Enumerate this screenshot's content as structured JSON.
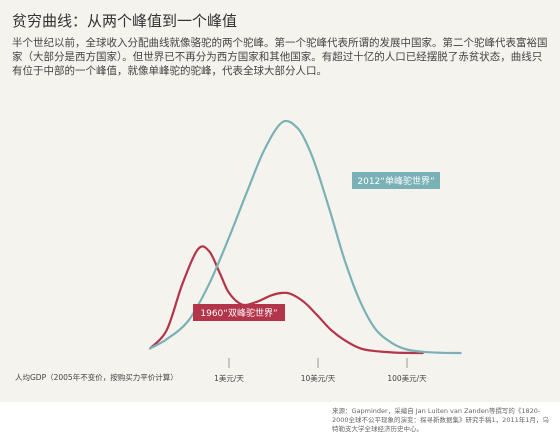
{
  "header": {
    "title": "贫穷曲线：从两个峰值到一个峰值",
    "intro": "半个世纪以前，全球收入分配曲线就像骆驼的两个驼峰。第一个驼峰代表所谓的发展中国家。第二个驼峰代表富裕国家（大部分是西方国家）。但世界已不再分为西方国家和其他国家。有超过十亿的人口已经摆脱了赤贫状态，曲线只有位于中部的一个峰值，就像单峰驼的驼峰，代表全球大部分人口。"
  },
  "colors": {
    "series_2012": "#7ab1b6",
    "series_1960": "#b3354a",
    "background": "#f5f3ee",
    "axis": "#999999"
  },
  "chart_data": {
    "type": "line",
    "x_scale": "log",
    "xlabel": "人均GDP（2005年不变价，按购买力平价计算）",
    "x_ticks": [
      {
        "value": 1,
        "label": "1美元/天"
      },
      {
        "value": 10,
        "label": "10美元/天"
      },
      {
        "value": 100,
        "label": "100美元/天"
      }
    ],
    "series": [
      {
        "name": "2012“单峰驼世界”",
        "color": "#7ab1b6",
        "x": [
          0.13,
          0.2,
          0.35,
          0.6,
          1,
          1.6,
          2.5,
          4,
          6,
          8,
          10,
          14,
          20,
          30,
          45,
          70,
          100,
          150,
          250,
          400
        ],
        "y": [
          0.02,
          0.06,
          0.14,
          0.3,
          0.5,
          0.7,
          0.88,
          1.0,
          0.97,
          0.88,
          0.78,
          0.6,
          0.4,
          0.22,
          0.1,
          0.04,
          0.015,
          0.005,
          0.001,
          0.0
        ]
      },
      {
        "name": "1960“双峰驼世界”",
        "color": "#b3354a",
        "x": [
          0.13,
          0.2,
          0.3,
          0.45,
          0.6,
          0.8,
          1,
          1.4,
          2,
          3,
          4,
          5,
          7,
          10,
          14,
          20,
          30,
          45,
          70,
          100,
          150
        ],
        "y": [
          0.02,
          0.1,
          0.3,
          0.45,
          0.44,
          0.34,
          0.26,
          0.21,
          0.22,
          0.25,
          0.26,
          0.255,
          0.22,
          0.16,
          0.1,
          0.055,
          0.02,
          0.008,
          0.002,
          0.0005,
          0.0
        ]
      }
    ]
  },
  "source": "来源：Gapminder，采编自 Jan Luiten van Zanden等撰写的《1820-2000全球不公平现象的演变：探寻新数据集》研究手稿1，2011年1月，乌特勒支大学全球经济历史中心。"
}
